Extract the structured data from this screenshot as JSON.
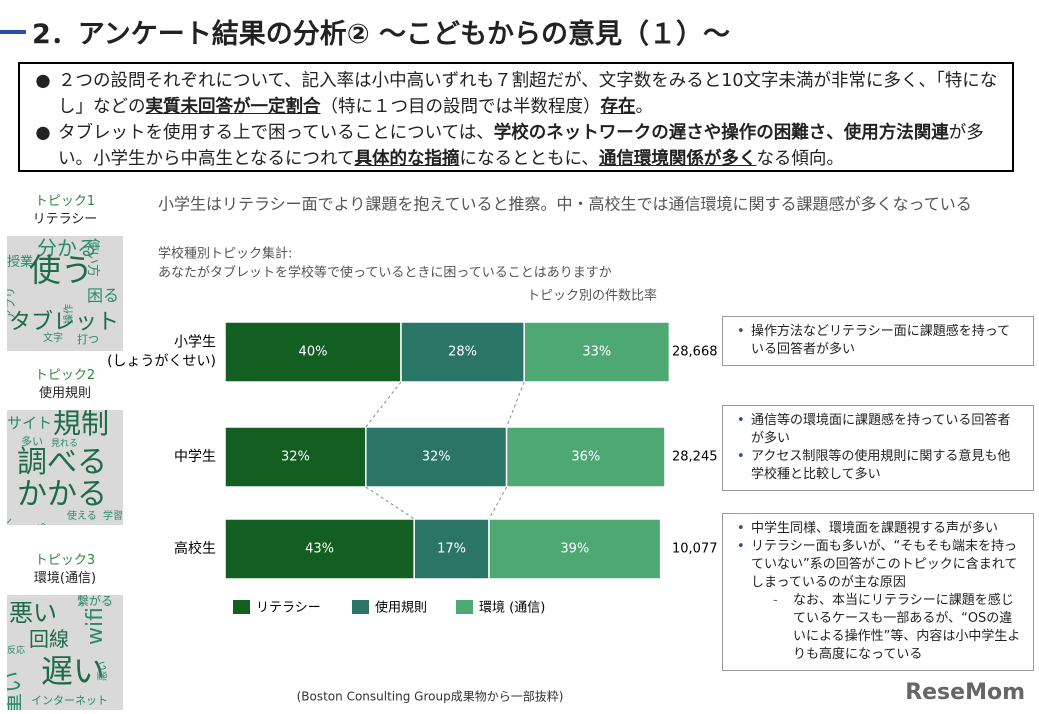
{
  "header": {
    "title": "2．アンケート結果の分析② ～こどもからの意見（１）～"
  },
  "summary": [
    [
      {
        "text": "２つの設問それぞれについて、記入率は小中高いずれも７割超だが、文字数をみると10文字未満が非常に多く、「特になし」などの"
      },
      {
        "text": "実質未回答が一定割合",
        "bold": true,
        "underline": true
      },
      {
        "text": "（特に１つ目の設問では半数程度）"
      },
      {
        "text": "存在",
        "bold": true,
        "underline": true
      },
      {
        "text": "。"
      }
    ],
    [
      {
        "text": "タブレットを使用する上で困っていることについては、"
      },
      {
        "text": "学校のネットワークの遅さや操作の困難さ、使用方法関連",
        "bold": true
      },
      {
        "text": "が多い。小学生から中高生となるにつれて"
      },
      {
        "text": "具体的な指摘",
        "bold": true,
        "underline": true
      },
      {
        "text": "になるとともに、"
      },
      {
        "text": "通信環境関係が多く",
        "bold": true,
        "underline": true
      },
      {
        "text": "なる傾向。"
      }
    ]
  ],
  "topics": [
    {
      "label": "トピック1",
      "name": "リテラシー",
      "words": [
        "分かる",
        "使い方",
        "授業",
        "使う",
        "アプリ",
        "操作",
        "困る",
        "タブレット",
        "文字",
        "打つ"
      ]
    },
    {
      "label": "トピック2",
      "name": "使用規則",
      "words": [
        "サイト",
        "規制",
        "多い",
        "見れる",
        "調べる",
        "かかる",
        "開く",
        "見る",
        "使える",
        "学習"
      ]
    },
    {
      "label": "トピック3",
      "name": "環境(通信)",
      "words": [
        "悪い",
        "繋がる",
        "回線",
        "wifi",
        "反応",
        "遅い",
        "重い",
        "インターネット",
        "悪い"
      ]
    }
  ],
  "chart_data": {
    "type": "stacked-bar-horizontal",
    "title": "小学生はリテラシー面でより課題を抱えていると推察。中・高校生では通信環境に関する課題感が多くなっている",
    "subtitle": [
      "学校種別トピック集計:",
      "あなたがタブレットを学校等で使っているときに困っていることはありますか"
    ],
    "value_axis_label": "トピック別の件数比率",
    "categories": [
      "小学生\n(しょうがくせい)",
      "中学生",
      "高校生"
    ],
    "series": [
      {
        "name": "リテラシー",
        "color": "#135f22",
        "values": [
          40,
          32,
          43
        ],
        "value_labels": [
          "40%",
          "32%",
          "43%"
        ]
      },
      {
        "name": "使用規則",
        "color": "#2a7566",
        "values": [
          28,
          32,
          17
        ],
        "value_labels": [
          "28%",
          "32%",
          "17%"
        ]
      },
      {
        "name": "環境 (通信)",
        "color": "#4ea874",
        "values": [
          33,
          36,
          39
        ],
        "value_labels": [
          "33%",
          "36%",
          "39%"
        ]
      }
    ],
    "counts": {
      "values": [
        28668,
        28245,
        10077
      ],
      "value_labels": [
        "28,668",
        "28,245",
        "10,077"
      ]
    }
  },
  "notes": [
    [
      {
        "text": "操作方法などリテラシー面に課題感を持っている回答者が多い",
        "level": 1
      }
    ],
    [
      {
        "text": "通信等の環境面に課題感を持っている回答者が多い",
        "level": 1
      },
      {
        "text": "アクセス制限等の使用規則に関する意見も他学校種と比較して多い",
        "level": 1
      }
    ],
    [
      {
        "text": "中学生同様、環境面を課題視する声が多い",
        "level": 1
      },
      {
        "text": "リテラシー面も多いが、“そもそも端末を持っていない”系の回答がこのトピックに含まれてしまっているのが主な原因",
        "level": 1
      },
      {
        "text": "なお、本当にリテラシーに課題を感じているケースも一部あるが、“OSの違いによる操作性”等、内容は小中学生よりも高度になっている",
        "level": 2
      }
    ]
  ],
  "source": "(Boston Consulting Group成果物から一部抜粋)",
  "watermark": "ReseMom"
}
